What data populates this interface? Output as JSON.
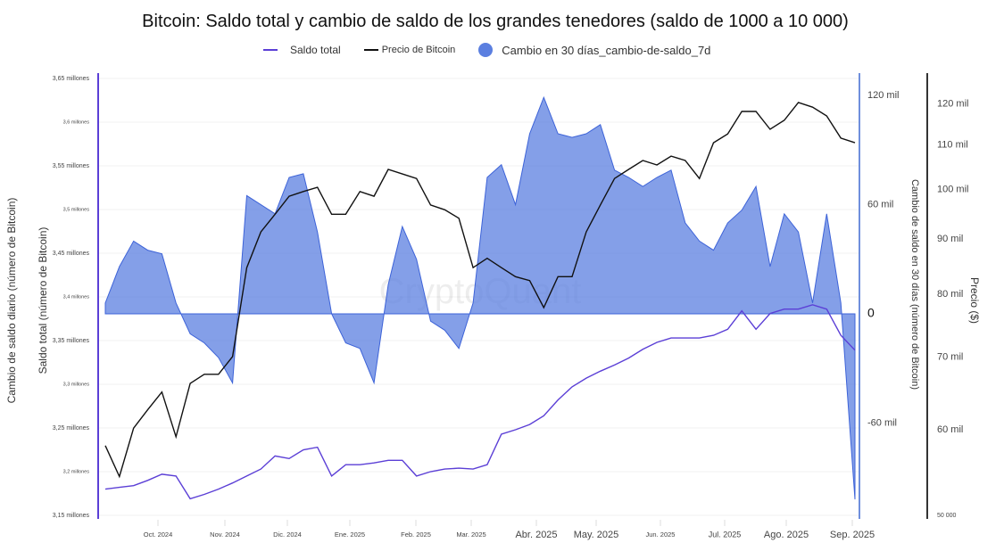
{
  "chart_data": {
    "type": "line",
    "title": "Bitcoin: Saldo total y cambio de saldo de los grandes tenedores (saldo de 1000 a 10 000)",
    "legend": [
      {
        "name": "Saldo total",
        "color": "#5b3fd6"
      },
      {
        "name": "Precio de Bitcoin",
        "color": "#111111"
      },
      {
        "name": "Cambio en 30 días_cambio-de-saldo_7d",
        "color": "#5b7fe0"
      }
    ],
    "legend_position": "top",
    "x_period": "2024-09-05 to 2025-09-05, weekly samples",
    "x_tick_labels": [
      "Oct. 2024",
      "Nov. 2024",
      "Dic. 2024",
      "Ene. 2025",
      "Feb. 2025",
      "Mar. 2025",
      "Abr. 2025",
      "May. 2025",
      "Jun. 2025",
      "Jul. 2025",
      "Ago. 2025",
      "Sep. 2025"
    ],
    "axes": {
      "left_outer_label": "Cambio de saldo diario (número de Bitcoin)",
      "left_label": "Saldo total (número de Bitcoin)",
      "left_ticks": [
        "3,15 millones",
        "3,2 millones",
        "3,25 millones",
        "3,3 millones",
        "3,35 millones",
        "3,4 millones",
        "3,45 millones",
        "3,5 millones",
        "3,55 millones",
        "3,6 millones",
        "3,65 millones"
      ],
      "left_range_thousands": [
        3150,
        3650
      ],
      "right1_label": "Cambio de saldo en 30 días (número de Bitcoin)",
      "right1_ticks": [
        "-60 mil",
        "0",
        "60 mil",
        "120 mil"
      ],
      "right1_range_thousands": [
        -115,
        125
      ],
      "right2_label": "Precio ($)",
      "right2_ticks": [
        "50 000",
        "60 mil",
        "70 mil",
        "80 mil",
        "90 mil",
        "100 mil",
        "110 mil",
        "120 mil"
      ],
      "right2_range_thousands": [
        50,
        125
      ],
      "right2_scale": "log"
    },
    "grid": true,
    "watermark": "CryptoQuant",
    "series": [
      {
        "name": "Saldo total",
        "unit": "thousand BTC",
        "values": [
          3180,
          3182,
          3184,
          3190,
          3197,
          3195,
          3169,
          3174,
          3180,
          3187,
          3195,
          3203,
          3218,
          3215,
          3225,
          3228,
          3195,
          3208,
          3208,
          3210,
          3213,
          3213,
          3195,
          3200,
          3203,
          3204,
          3203,
          3208,
          3243,
          3248,
          3254,
          3264,
          3282,
          3297,
          3307,
          3315,
          3322,
          3330,
          3340,
          3348,
          3353,
          3353,
          3353,
          3356,
          3363,
          3384,
          3363,
          3381,
          3386,
          3386,
          3391,
          3386,
          3356,
          3339
        ]
      },
      {
        "name": "Precio de Bitcoin",
        "unit": "thousand USD",
        "values": [
          58.0,
          54.3,
          60.2,
          62.6,
          65.0,
          59.1,
          66.2,
          67.5,
          67.5,
          70.1,
          84.7,
          91.4,
          94.9,
          98.6,
          99.6,
          100.5,
          94.9,
          94.9,
          99.6,
          98.6,
          104.4,
          103.4,
          102.4,
          96.8,
          95.8,
          94.1,
          84.7,
          86.4,
          84.7,
          83.1,
          82.4,
          77.8,
          83.1,
          83.1,
          91.4,
          96.8,
          102.4,
          104.4,
          106.4,
          105.4,
          107.4,
          106.4,
          102.4,
          110.5,
          112.6,
          118.1,
          118.1,
          113.7,
          115.9,
          120.4,
          119.2,
          117.0,
          111.6,
          110.5
        ]
      },
      {
        "name": "Cambio en 30 días_cambio-de-saldo_7d",
        "unit": "thousand BTC",
        "values": [
          6,
          26,
          40,
          35,
          33,
          6,
          -11,
          -16,
          -24,
          -38,
          65,
          60,
          55,
          75,
          77,
          45,
          0,
          -16,
          -19,
          -38,
          16,
          48,
          30,
          -4,
          -9,
          -19,
          6,
          75,
          82,
          60,
          99,
          119,
          99,
          97,
          99,
          104,
          79,
          75,
          70,
          75,
          79,
          50,
          40,
          35,
          50,
          57,
          70,
          26,
          55,
          45,
          6,
          55,
          6,
          -102
        ]
      }
    ]
  }
}
